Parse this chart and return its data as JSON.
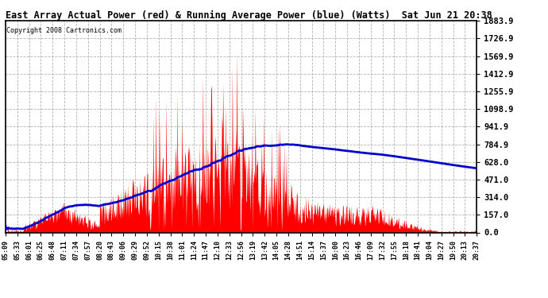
{
  "title": "East Array Actual Power (red) & Running Average Power (blue) (Watts)  Sat Jun 21 20:38",
  "copyright": "Copyright 2008 Cartronics.com",
  "ytick_values": [
    0.0,
    157.0,
    314.0,
    471.0,
    628.0,
    784.9,
    941.9,
    1098.9,
    1255.9,
    1412.9,
    1569.9,
    1726.9,
    1883.9
  ],
  "ymax": 1883.9,
  "ymin": 0.0,
  "actual_color": "#FF0000",
  "average_color": "#0000CC",
  "background_color": "#FFFFFF",
  "grid_color": "#AAAAAA",
  "plot_bg_color": "#FFFFFF",
  "xtick_labels": [
    "05:09",
    "05:33",
    "06:01",
    "06:25",
    "06:48",
    "07:11",
    "07:34",
    "07:57",
    "08:20",
    "08:43",
    "09:06",
    "09:29",
    "09:52",
    "10:15",
    "10:38",
    "11:01",
    "11:24",
    "11:47",
    "12:10",
    "12:33",
    "12:56",
    "13:19",
    "13:42",
    "14:05",
    "14:28",
    "14:51",
    "15:14",
    "15:37",
    "16:00",
    "16:23",
    "16:46",
    "17:09",
    "17:32",
    "17:55",
    "18:18",
    "18:41",
    "19:04",
    "19:27",
    "19:50",
    "20:13",
    "20:37"
  ],
  "num_points": 820
}
